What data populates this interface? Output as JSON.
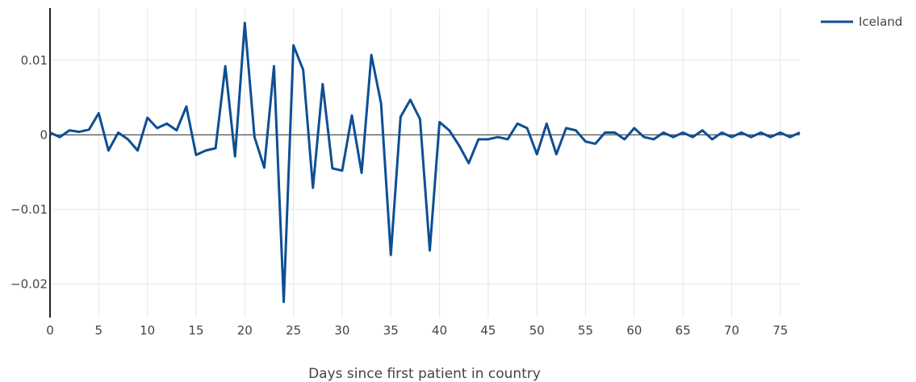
{
  "chart_data": {
    "type": "line",
    "title": "",
    "xlabel": "Days since first patient in country",
    "ylabel": "",
    "xlim": [
      0,
      77
    ],
    "ylim": [
      -0.0245,
      0.017
    ],
    "xticks": [
      0,
      5,
      10,
      15,
      20,
      25,
      30,
      35,
      40,
      45,
      50,
      55,
      60,
      65,
      70,
      75
    ],
    "yticks": [
      -0.02,
      -0.01,
      0,
      0.01
    ],
    "ytick_labels": [
      "−0.02",
      "−0.01",
      "0",
      "0.01"
    ],
    "grid": true,
    "legend_position": "top-right",
    "colors": {
      "series": "#0d4f94",
      "grid": "#e6e6e6",
      "axis": "#222222"
    },
    "series": [
      {
        "name": "Iceland",
        "x": [
          0,
          1,
          2,
          3,
          4,
          5,
          6,
          7,
          8,
          9,
          10,
          11,
          12,
          13,
          14,
          15,
          16,
          17,
          18,
          19,
          20,
          21,
          22,
          23,
          24,
          25,
          26,
          27,
          28,
          29,
          30,
          31,
          32,
          33,
          34,
          35,
          36,
          37,
          38,
          39,
          40,
          41,
          42,
          43,
          44,
          45,
          46,
          47,
          48,
          49,
          50,
          51,
          52,
          53,
          54,
          55,
          56,
          57,
          58,
          59,
          60,
          61,
          62,
          63,
          64,
          65,
          66,
          67,
          68,
          69,
          70,
          71,
          72,
          73,
          74,
          75,
          76,
          77
        ],
        "values": [
          0.0003,
          -0.0003,
          0.0006,
          0.0004,
          0.0007,
          0.0029,
          -0.0021,
          0.0003,
          -0.0006,
          -0.0021,
          0.0023,
          0.0009,
          0.0015,
          0.0006,
          0.0038,
          -0.0027,
          -0.0021,
          -0.0018,
          0.0092,
          -0.0029,
          0.015,
          -0.0003,
          -0.0044,
          0.0092,
          -0.0224,
          0.012,
          0.0087,
          -0.0071,
          0.0068,
          -0.0045,
          -0.0048,
          0.0026,
          -0.0051,
          0.0107,
          0.0042,
          -0.0161,
          0.0024,
          0.0047,
          0.0021,
          -0.0155,
          0.0017,
          0.0006,
          -0.0014,
          -0.0038,
          -0.0006,
          -0.0006,
          -0.0003,
          -0.0006,
          0.0015,
          0.0009,
          -0.0026,
          0.0015,
          -0.0026,
          0.0009,
          0.0006,
          -0.0009,
          -0.0012,
          0.0003,
          0.0003,
          -0.0006,
          0.0009,
          -0.0003,
          -0.0006,
          0.0003,
          -0.0003,
          0.0003,
          -0.0003,
          0.0006,
          -0.0006,
          0.0003,
          -0.0003,
          0.0003,
          -0.0003,
          0.0003,
          -0.0003,
          0.0003,
          -0.0003,
          0.0003
        ]
      }
    ]
  }
}
